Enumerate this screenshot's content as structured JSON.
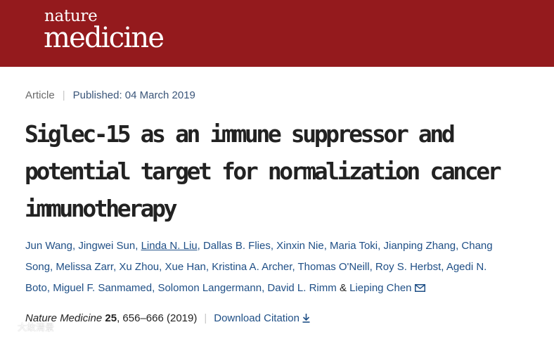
{
  "header": {
    "brand_small": "nature",
    "brand_big": "medicine",
    "background": "#941a1d"
  },
  "meta": {
    "type": "Article",
    "separator": "|",
    "published": "Published: 04 March 2019"
  },
  "article": {
    "title_lines": [
      "Siglec-15 as an immune suppressor and",
      "potential target for normalization cancer",
      "immunotherapy"
    ]
  },
  "authors": {
    "line1": {
      "a": "Jun Wang",
      "b": "Jingwei Sun",
      "c": "Linda N. Liu",
      "d": "Dallas B. Flies",
      "e": "Xinxin Nie",
      "f": "Maria Toki",
      "g": "Jianping Zhang",
      "h": "Chang"
    },
    "line2": {
      "a": "Song",
      "b": "Melissa Zarr",
      "c": "Xu Zhou",
      "d": "Xue Han",
      "e": "Kristina A. Archer",
      "f": "Thomas O'Neill",
      "g": "Roy S. Herbst",
      "h": "Agedi N."
    },
    "line3": {
      "a": "Boto",
      "b": "Miguel F. Sanmamed",
      "c": "Solomon Langermann",
      "d": "David L. Rimm",
      "amp": "&",
      "e": "Lieping Chen"
    },
    "mail_icon": "envelope-icon"
  },
  "citation": {
    "journal": "Nature Medicine",
    "volume": "25",
    "pages_year": ", 656–666 (2019)",
    "separator": "|",
    "download_label": "Download Citation",
    "download_icon": "download-icon",
    "link_color": "#1f4f86"
  },
  "watermark": {
    "text": "大故清景"
  }
}
